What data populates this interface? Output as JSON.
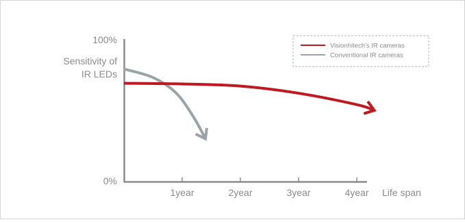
{
  "chart_data": {
    "type": "line",
    "y_axis": {
      "top_label": "100%",
      "bottom_label": "0%",
      "label_lines": [
        "Sensitivity of",
        "IR LEDs"
      ],
      "ylim": [
        0,
        100
      ]
    },
    "x_axis": {
      "ticks": [
        "1year",
        "2year",
        "3year",
        "4year"
      ],
      "tick_values": [
        1,
        2,
        3,
        4
      ],
      "label": "Life span",
      "xlim": [
        0,
        5
      ]
    },
    "legend": {
      "placement": "top-right",
      "style": "dashed-box"
    },
    "series": [
      {
        "name": "Visionhitech's IR cameras",
        "color": "#c0181f",
        "points": [
          [
            0,
            69
          ],
          [
            1,
            68.5
          ],
          [
            2,
            67
          ],
          [
            3,
            62
          ],
          [
            4,
            54
          ],
          [
            4.3,
            50
          ]
        ],
        "arrow_end": true
      },
      {
        "name": "Conventional IR cameras",
        "color": "#9aa4a6",
        "points": [
          [
            0,
            79
          ],
          [
            0.5,
            73
          ],
          [
            0.9,
            62
          ],
          [
            1.2,
            45
          ],
          [
            1.4,
            30
          ]
        ],
        "arrow_end": true
      }
    ]
  }
}
